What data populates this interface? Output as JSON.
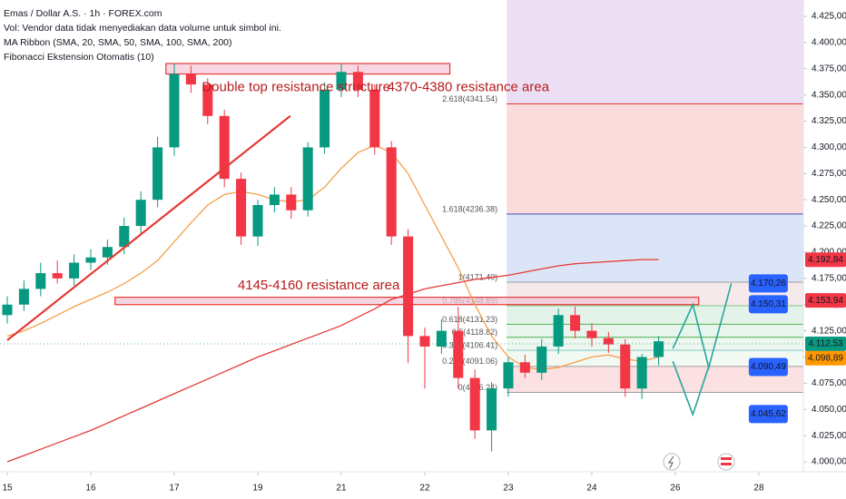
{
  "chart_data": {
    "type": "candlestick",
    "header": [
      "Emas / Dollar A.S. · 1h · FOREX.com",
      "Vol: Vendor data tidak menyediakan data volume untuk simbol ini.",
      "MA Ribbon (SMA, 20, SMA, 50, SMA, 100, SMA, 200)",
      "Fibonacci Ekstension Otomatis (10)"
    ],
    "annotations": [
      {
        "text": "Double top resistance structure",
        "x": 2.33,
        "y": 4357
      },
      {
        "text": "4370-4380 resistance area",
        "x": 4.55,
        "y": 4357
      },
      {
        "text": "4145-4160 resistance area",
        "x": 2.76,
        "y": 4168
      }
    ],
    "xlim": [
      -0.087,
      9.533
    ],
    "ylim": [
      3990.5,
      4440.6
    ],
    "xticks": [
      {
        "value": 0,
        "label": "15"
      },
      {
        "value": 1,
        "label": "16"
      },
      {
        "value": 2,
        "label": "17"
      },
      {
        "value": 3,
        "label": "19"
      },
      {
        "value": 4,
        "label": "21"
      },
      {
        "value": 5,
        "label": "22"
      },
      {
        "value": 6,
        "label": "23"
      },
      {
        "value": 7,
        "label": "24"
      },
      {
        "value": 8,
        "label": "26"
      },
      {
        "value": 9,
        "label": "28"
      }
    ],
    "yticks": [
      {
        "value": 4000,
        "label": "4.000,00"
      },
      {
        "value": 4025,
        "label": "4.025,00"
      },
      {
        "value": 4050,
        "label": "4.050,00"
      },
      {
        "value": 4075,
        "label": "4.075,00"
      },
      {
        "value": 4100,
        "label": "4.100,00"
      },
      {
        "value": 4125,
        "label": "4.125,00"
      },
      {
        "value": 4150,
        "label": "4.150,00"
      },
      {
        "value": 4175,
        "label": "4.175,00"
      },
      {
        "value": 4200,
        "label": "4.200,00"
      },
      {
        "value": 4225,
        "label": "4.225,00"
      },
      {
        "value": 4250,
        "label": "4.250,00"
      },
      {
        "value": 4275,
        "label": "4.275,00"
      },
      {
        "value": 4300,
        "label": "4.300,00"
      },
      {
        "value": 4325,
        "label": "4.325,00"
      },
      {
        "value": 4350,
        "label": "4.350,00"
      },
      {
        "value": 4375,
        "label": "4.375,00"
      },
      {
        "value": 4400,
        "label": "4.400,00"
      },
      {
        "value": 4425,
        "label": "4.425,00"
      }
    ],
    "up_color": "#089981",
    "down_color": "#f23645",
    "x": [
      0,
      0.2,
      0.4,
      0.6,
      0.8,
      1,
      1.2,
      1.4,
      1.6,
      1.8,
      2,
      2.2,
      2.4,
      2.6,
      2.8,
      3,
      3.2,
      3.4,
      3.6,
      3.8,
      4,
      4.2,
      4.4,
      4.6,
      4.8,
      5,
      5.2,
      5.4,
      5.6,
      5.8,
      6,
      6.2,
      6.4,
      6.6,
      6.8,
      7,
      7.2,
      7.4,
      7.6,
      7.8
    ],
    "open": [
      4140,
      4150,
      4165,
      4180,
      4175,
      4190,
      4195,
      4205,
      4225,
      4250,
      4300,
      4370,
      4360,
      4330,
      4270,
      4215,
      4245,
      4255,
      4240,
      4300,
      4355,
      4372,
      4355,
      4300,
      4215,
      4120,
      4110,
      4125,
      4080,
      4030,
      4070,
      4095,
      4085,
      4110,
      4140,
      4125,
      4118,
      4112,
      4070,
      4100
    ],
    "high": [
      4158,
      4173,
      4190,
      4192,
      4198,
      4203,
      4212,
      4233,
      4258,
      4310,
      4380,
      4378,
      4366,
      4336,
      4276,
      4250,
      4262,
      4262,
      4305,
      4362,
      4380,
      4378,
      4360,
      4306,
      4222,
      4128,
      4136,
      4148,
      4088,
      4076,
      4100,
      4102,
      4117,
      4146,
      4148,
      4132,
      4124,
      4117,
      4103,
      4120
    ],
    "low": [
      4132,
      4144,
      4158,
      4170,
      4168,
      4183,
      4188,
      4198,
      4218,
      4243,
      4292,
      4352,
      4322,
      4262,
      4207,
      4206,
      4238,
      4232,
      4234,
      4294,
      4348,
      4348,
      4293,
      4207,
      4094,
      4070,
      4103,
      4070,
      4022,
      4010,
      4062,
      4080,
      4078,
      4103,
      4118,
      4110,
      4104,
      4062,
      4060,
      4092
    ],
    "close": [
      4150,
      4165,
      4180,
      4175,
      4190,
      4195,
      4205,
      4225,
      4250,
      4300,
      4370,
      4360,
      4330,
      4270,
      4215,
      4245,
      4255,
      4240,
      4300,
      4355,
      4372,
      4355,
      4300,
      4215,
      4120,
      4110,
      4125,
      4080,
      4030,
      4070,
      4095,
      4085,
      4110,
      4140,
      4125,
      4118,
      4112,
      4070,
      4100,
      4115
    ],
    "ma": [
      {
        "color": "#f5a04a",
        "values": [
          4120,
          4125,
          4132,
          4140,
          4148,
          4155,
          4162,
          4170,
          4180,
          4192,
          4210,
          4228,
          4245,
          4255,
          4258,
          4255,
          4250,
          4248,
          4250,
          4262,
          4280,
          4295,
          4302,
          4295,
          4275,
          4245,
          4215,
          4185,
          4150,
          4120,
          4100,
          4090,
          4088,
          4090,
          4095,
          4100,
          4102,
          4098,
          4096,
          4100
        ]
      },
      {
        "color": "#e53935",
        "values": [
          4000,
          4006,
          4012,
          4018,
          4024,
          4030,
          4037,
          4044,
          4051,
          4058,
          4065,
          4072,
          4079,
          4086,
          4093,
          4100,
          4106,
          4112,
          4118,
          4124,
          4130,
          4138,
          4146,
          4155,
          4160,
          4165,
          4168,
          4171,
          4174,
          4176,
          4178,
          4181,
          4184,
          4187,
          4189,
          4190,
          4191,
          4192,
          4193,
          4193
        ]
      }
    ],
    "trend_line": {
      "color": "#e53935",
      "x": [
        0,
        3.39
      ],
      "y": [
        4116,
        4330
      ]
    },
    "zones": [
      {
        "color": "#e53935",
        "fill": "#f4c6d8",
        "x": [
          1.9,
          5.3
        ],
        "y": [
          4370,
          4380
        ]
      },
      {
        "color": "#e53935",
        "fill": "#f4c6d8",
        "x": [
          1.29,
          8.28
        ],
        "y": [
          4150,
          4157
        ]
      }
    ],
    "fib": {
      "x_start": 5.98,
      "top_color": "#ecdff4",
      "levels": [
        {
          "label": "2.618(4341.54)",
          "value": 4341.54,
          "color": "#e53935",
          "band": "#fbdcdc"
        },
        {
          "label": "1.618(4236.38)",
          "value": 4236.38,
          "color": "#3f51b5",
          "band": "#dce5f8"
        },
        {
          "label": "1(4171.40)",
          "value": 4171.4,
          "color": "#9e9e9e",
          "band": "#f6e9ec"
        },
        {
          "label": "0.786(4148.89)",
          "value": 4148.89,
          "color": "#81c784",
          "band": "#e4f3e9"
        },
        {
          "label": "0.618(4131.23)",
          "value": 4131.23,
          "color": "#4caf50",
          "band": "#e8f5ec"
        },
        {
          "label": "0.5(4118.82)",
          "value": 4118.82,
          "color": "#4caf50",
          "band": "#edf7ef"
        },
        {
          "label": "0.382(4106.41)",
          "value": 4106.41,
          "color": "#80cbc4",
          "band": "#f2f9f2"
        },
        {
          "label": "0.236(4091.06)",
          "value": 4091.06,
          "color": "#9e9e9e",
          "band": "#fbe1e1"
        },
        {
          "label": "0(4066.24)",
          "value": 4066.24,
          "color": "#9e9e9e"
        }
      ]
    },
    "projections": [
      {
        "color": "#26a69a",
        "x": [
          7.97,
          8.21,
          8.4,
          8.67
        ],
        "y": [
          4108,
          4150,
          4090,
          4170
        ]
      },
      {
        "color": "#26a69a",
        "x": [
          7.97,
          8.21,
          8.4
        ],
        "y": [
          4096,
          4045,
          4091
        ]
      }
    ],
    "callouts": [
      {
        "value": 4170.26,
        "label": "4.170,26",
        "color": "#2962ff",
        "x": 8.88
      },
      {
        "value": 4150.31,
        "label": "4.150,31",
        "color": "#2962ff",
        "x": 8.88
      },
      {
        "value": 4090.49,
        "label": "4.090,49",
        "color": "#2962ff",
        "x": 8.88
      },
      {
        "value": 4045.62,
        "label": "4.045,62",
        "color": "#2962ff",
        "x": 8.88
      }
    ],
    "price_tags": [
      {
        "value": 4192.84,
        "label": "4.192,84",
        "color": "#f23645"
      },
      {
        "value": 4153.94,
        "label": "4.153,94",
        "color": "#f23645"
      },
      {
        "value": 4112.53,
        "label": "4.112,53",
        "color": "#089981"
      },
      {
        "value": 4098.89,
        "label": "4.098,89",
        "color": "#ff9800"
      }
    ]
  }
}
